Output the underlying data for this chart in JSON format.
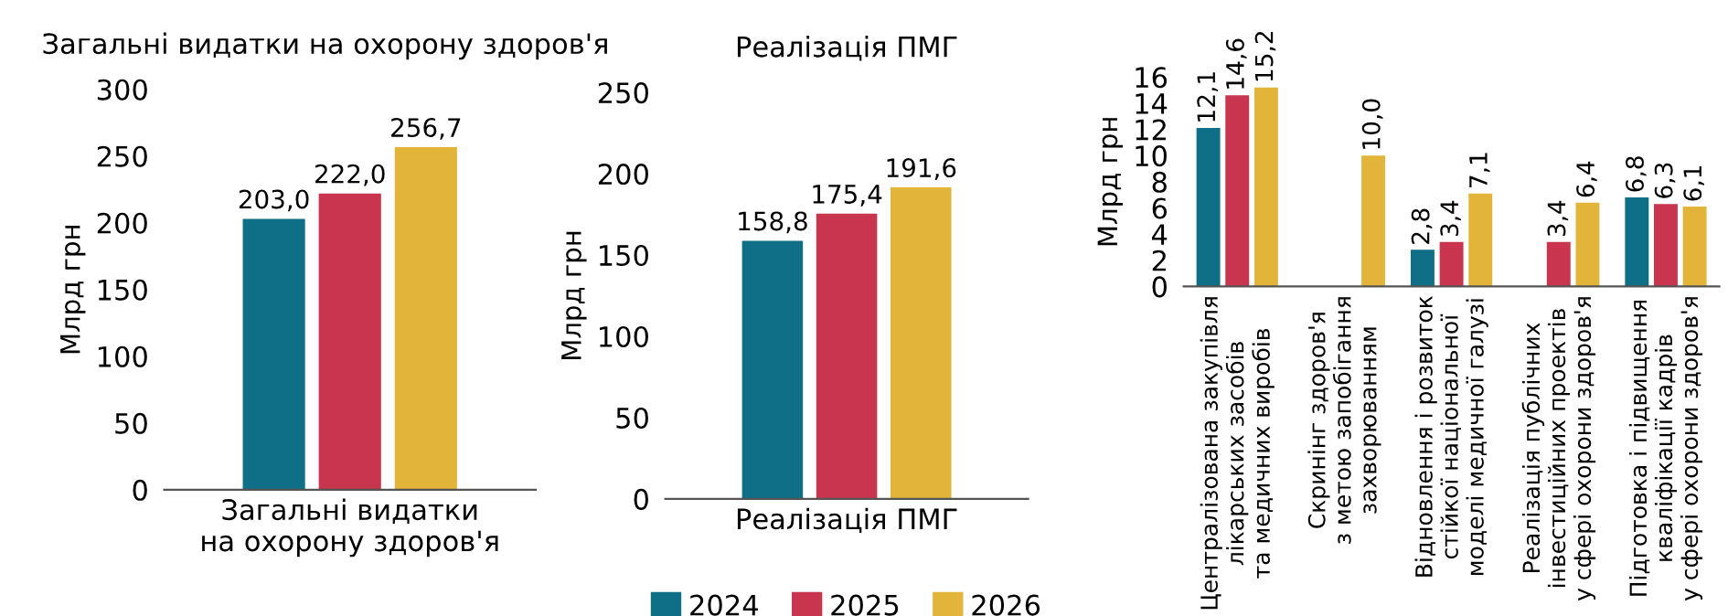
{
  "chart_data": [
    {
      "type": "bar",
      "title": "Загальні видатки на охорону здоров'я",
      "ylabel": "Млрд грн",
      "categories": [
        "Загальні видатки\nна охорону здоров'я"
      ],
      "ylim": [
        0,
        300
      ],
      "yticks": [
        0,
        50,
        100,
        150,
        200,
        250,
        300
      ],
      "grid": false,
      "legend": false,
      "series": [
        {
          "color": "#0e6f87",
          "values": [
            203.0
          ],
          "value_labels": [
            "203,0"
          ]
        },
        {
          "color": "#c9354f",
          "values": [
            222.0
          ],
          "value_labels": [
            "222,0"
          ]
        },
        {
          "color": "#e2b53a",
          "values": [
            256.7
          ],
          "value_labels": [
            "256,7"
          ]
        }
      ]
    },
    {
      "type": "bar",
      "title": "Реалізація ПМГ",
      "ylabel": "Млрд грн",
      "categories": [
        "Реалізація ПМГ"
      ],
      "ylim": [
        0,
        250
      ],
      "yticks": [
        0,
        50,
        100,
        150,
        200,
        250
      ],
      "grid": false,
      "legend": "bottom",
      "series": [
        {
          "name": "2024",
          "color": "#0e6f87",
          "values": [
            158.8
          ],
          "value_labels": [
            "158,8"
          ]
        },
        {
          "name": "2025",
          "color": "#c9354f",
          "values": [
            175.4
          ],
          "value_labels": [
            "175,4"
          ]
        },
        {
          "name": "2026",
          "color": "#e2b53a",
          "values": [
            191.6
          ],
          "value_labels": [
            "191,6"
          ]
        }
      ]
    },
    {
      "type": "bar",
      "ylabel": "Млрд грн",
      "categories": [
        "Централізована закупівля\nлікарських засобів\nта медичних виробів",
        "Скринінг здоров'я\nз метою запобігання\nзахворюванням",
        "Відновлення і розвиток\nстійкої національної\nмоделі медичної галузі",
        "Реалізація публічних\nінвестиційних проектів\nу сфері охорони здоров'я",
        "Підготовка і підвищення\nкваліфікації кадрів\nу сфері охорони здоров'я"
      ],
      "ylim": [
        0,
        16
      ],
      "yticks": [
        0,
        2,
        4,
        6,
        8,
        10,
        12,
        14,
        16
      ],
      "grid": false,
      "legend": false,
      "series": [
        {
          "color": "#0e6f87",
          "values": [
            12.1,
            null,
            2.8,
            null,
            6.8
          ],
          "value_labels": [
            "12,1",
            null,
            "2,8",
            null,
            "6,8"
          ]
        },
        {
          "color": "#c9354f",
          "values": [
            14.6,
            null,
            3.4,
            3.4,
            6.3
          ],
          "value_labels": [
            "14,6",
            null,
            "3,4",
            "3,4",
            "6,3"
          ]
        },
        {
          "color": "#e2b53a",
          "values": [
            15.2,
            10.0,
            7.1,
            6.4,
            6.1
          ],
          "value_labels": [
            "15,2",
            "10,0",
            "7,1",
            "6,4",
            "6,1"
          ]
        }
      ]
    }
  ]
}
